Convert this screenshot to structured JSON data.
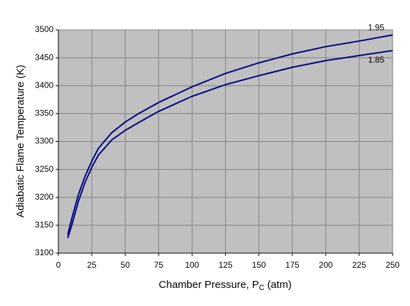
{
  "chart_data": {
    "type": "line",
    "xlabel": {
      "text": "Chamber Pressure, P",
      "subscript": "C",
      "unit": "(atm)"
    },
    "ylabel": "Adiabatic Flame Temperature (K)",
    "x": [
      7,
      10,
      15,
      20,
      25,
      30,
      40,
      50,
      60,
      75,
      100,
      125,
      150,
      175,
      200,
      225,
      250
    ],
    "series": [
      {
        "name": "1.95",
        "color": "#000080",
        "values": [
          3133,
          3162,
          3205,
          3238,
          3265,
          3288,
          3316,
          3335,
          3350,
          3370,
          3398,
          3422,
          3441,
          3457,
          3470,
          3480,
          3491
        ]
      },
      {
        "name": "1.85",
        "color": "#000080",
        "values": [
          3127,
          3150,
          3193,
          3227,
          3254,
          3276,
          3303,
          3320,
          3334,
          3354,
          3381,
          3402,
          3418,
          3433,
          3445,
          3454,
          3463
        ]
      }
    ],
    "xlim": [
      0,
      250
    ],
    "xticks": [
      0,
      25,
      50,
      75,
      100,
      125,
      150,
      175,
      200,
      225,
      250
    ],
    "ylim": [
      3100,
      3500
    ],
    "yticks": [
      3100,
      3150,
      3200,
      3250,
      3300,
      3350,
      3400,
      3450,
      3500
    ],
    "grid": true,
    "plot_background": "#c0c0c0",
    "grid_color": "#808080"
  }
}
